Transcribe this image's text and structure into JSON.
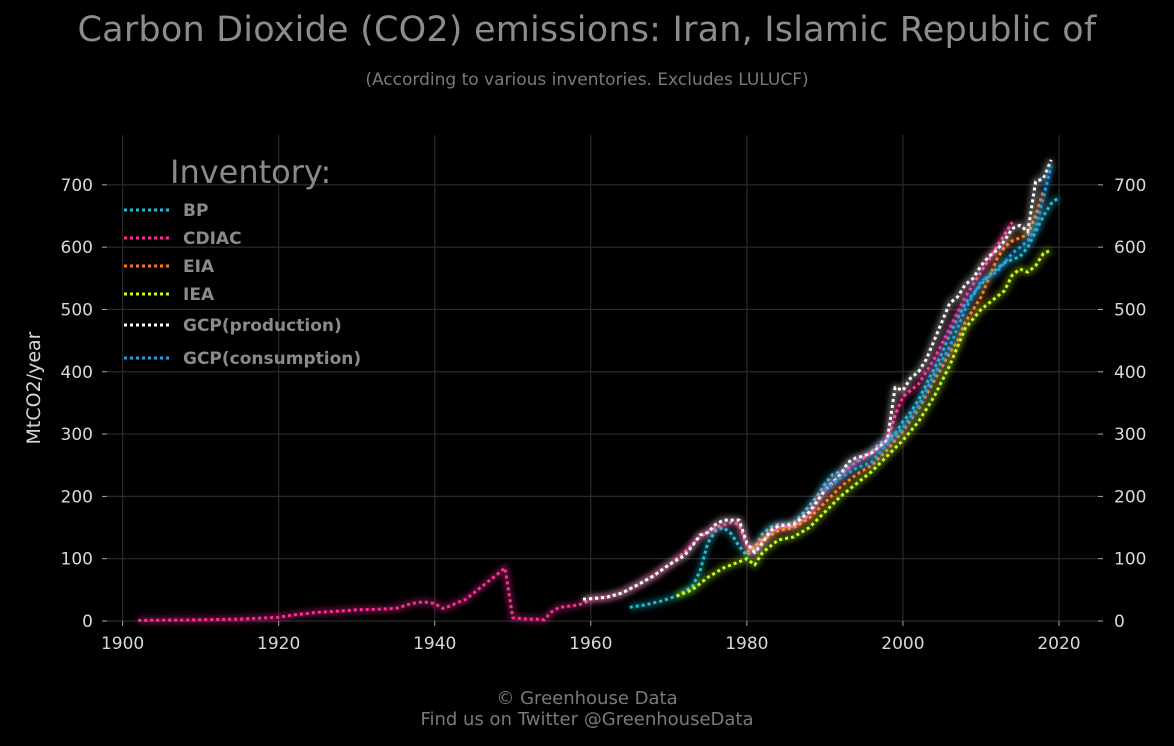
{
  "title": "Carbon Dioxide (CO2) emissions: Iran, Islamic Republic of",
  "subtitle": "(According to various inventories. Excludes LULUCF)",
  "footer": {
    "line1": "© Greenhouse Data",
    "line2": "Find us on Twitter @GreenhouseData"
  },
  "colors": {
    "background": "#000000",
    "grid": "#2b2b2b",
    "tick_text": "#d8d8d8",
    "legend_text": "#8a8a8a"
  },
  "chart_data": {
    "type": "line",
    "title": "Carbon Dioxide (CO2) emissions: Iran, Islamic Republic of",
    "subtitle": "(According to various inventories. Excludes LULUCF)",
    "xlabel": "",
    "ylabel": "MtCO2/year",
    "xlim": [
      1898,
      2025
    ],
    "ylim": [
      0,
      780
    ],
    "xticks": [
      1900,
      1920,
      1940,
      1960,
      1980,
      2000,
      2020
    ],
    "yticks": [
      0,
      100,
      200,
      300,
      400,
      500,
      600,
      700
    ],
    "grid": true,
    "legend_title": "Inventory:",
    "legend_position": "top-left",
    "line_style": "dotted",
    "series": [
      {
        "name": "BP",
        "color": "#19c3d6",
        "x": [
          1965,
          1967,
          1969,
          1971,
          1973,
          1974,
          1975,
          1976,
          1977,
          1978,
          1979,
          1980,
          1981,
          1982,
          1983,
          1984,
          1985,
          1986,
          1987,
          1988,
          1989,
          1990,
          1991,
          1992,
          1993,
          1994,
          1995,
          1996,
          1997,
          1998,
          1999,
          2000,
          2001,
          2002,
          2003,
          2004,
          2005,
          2006,
          2007,
          2008,
          2009,
          2010,
          2011,
          2012,
          2013,
          2014,
          2015,
          2016,
          2017,
          2018,
          2019,
          2020
        ],
        "y": [
          22,
          26,
          32,
          40,
          55,
          80,
          125,
          145,
          150,
          140,
          120,
          105,
          118,
          140,
          150,
          155,
          155,
          158,
          170,
          185,
          200,
          220,
          235,
          240,
          245,
          255,
          262,
          272,
          285,
          292,
          300,
          320,
          335,
          355,
          380,
          405,
          430,
          460,
          485,
          510,
          525,
          540,
          555,
          565,
          575,
          580,
          585,
          600,
          625,
          650,
          670,
          680
        ]
      },
      {
        "name": "CDIAC",
        "color": "#ff2e97",
        "x": [
          1902,
          1910,
          1915,
          1920,
          1922,
          1925,
          1928,
          1930,
          1933,
          1935,
          1937,
          1938,
          1939,
          1940,
          1941,
          1942,
          1943,
          1944,
          1945,
          1946,
          1947,
          1948,
          1949,
          1950,
          1951,
          1952,
          1953,
          1954,
          1955,
          1956,
          1958,
          1959,
          1960,
          1962,
          1964,
          1966,
          1968,
          1970,
          1972,
          1974,
          1976,
          1978,
          1979,
          1980,
          1981,
          1982,
          1984,
          1986,
          1988,
          1990,
          1992,
          1994,
          1996,
          1998,
          1999,
          2000,
          2002,
          2004,
          2006,
          2008,
          2010,
          2012,
          2013,
          2014
        ],
        "y": [
          1,
          2,
          3,
          6,
          10,
          14,
          16,
          18,
          19,
          20,
          28,
          30,
          30,
          28,
          20,
          24,
          30,
          35,
          45,
          55,
          65,
          75,
          85,
          5,
          4,
          3,
          3,
          2,
          15,
          22,
          25,
          28,
          35,
          38,
          45,
          58,
          72,
          90,
          110,
          135,
          150,
          158,
          155,
          120,
          110,
          130,
          150,
          152,
          170,
          210,
          235,
          255,
          270,
          290,
          330,
          360,
          380,
          420,
          470,
          520,
          560,
          600,
          620,
          640
        ]
      },
      {
        "name": "EIA",
        "color": "#ff7a1a",
        "x": [
          1980,
          1982,
          1984,
          1986,
          1988,
          1990,
          1992,
          1994,
          1996,
          1998,
          2000,
          2002,
          2004,
          2006,
          2007,
          2008,
          2009,
          2010,
          2011,
          2012,
          2013,
          2014,
          2015,
          2016,
          2017,
          2018
        ],
        "y": [
          110,
          130,
          145,
          150,
          165,
          190,
          215,
          235,
          250,
          275,
          305,
          340,
          385,
          430,
          450,
          480,
          500,
          520,
          550,
          580,
          600,
          610,
          615,
          620,
          650,
          690
        ]
      },
      {
        "name": "IEA",
        "color": "#c0ff1a",
        "x": [
          1971,
          1973,
          1975,
          1977,
          1979,
          1980,
          1981,
          1982,
          1984,
          1986,
          1988,
          1990,
          1992,
          1994,
          1996,
          1998,
          2000,
          2002,
          2004,
          2006,
          2008,
          2010,
          2012,
          2013,
          2014,
          2015,
          2016,
          2017,
          2018,
          2019
        ],
        "y": [
          40,
          50,
          70,
          85,
          95,
          100,
          90,
          110,
          130,
          135,
          150,
          175,
          200,
          220,
          240,
          265,
          290,
          320,
          360,
          410,
          470,
          500,
          520,
          530,
          555,
          565,
          560,
          570,
          590,
          595
        ]
      },
      {
        "name": "GCP(production)",
        "color": "#ffffff",
        "x": [
          1959,
          1962,
          1964,
          1966,
          1968,
          1970,
          1972,
          1973,
          1974,
          1975,
          1976,
          1977,
          1978,
          1979,
          1980,
          1981,
          1982,
          1983,
          1984,
          1986,
          1988,
          1990,
          1992,
          1993,
          1994,
          1995,
          1996,
          1997,
          1998,
          1999,
          2000,
          2001,
          2002,
          2003,
          2004,
          2005,
          2006,
          2007,
          2008,
          2009,
          2010,
          2011,
          2012,
          2013,
          2014,
          2015,
          2016,
          2017,
          2018,
          2019
        ],
        "y": [
          35,
          38,
          45,
          58,
          72,
          90,
          105,
          120,
          138,
          142,
          155,
          162,
          162,
          162,
          125,
          110,
          125,
          145,
          152,
          155,
          175,
          210,
          235,
          255,
          262,
          265,
          270,
          280,
          290,
          375,
          370,
          390,
          400,
          420,
          450,
          480,
          510,
          520,
          540,
          550,
          570,
          585,
          595,
          610,
          630,
          635,
          625,
          705,
          710,
          740
        ]
      },
      {
        "name": "GCP(consumption)",
        "color": "#1ea1e8",
        "x": [
          1990,
          1992,
          1994,
          1996,
          1998,
          2000,
          2002,
          2004,
          2006,
          2008,
          2010,
          2012,
          2013,
          2014,
          2015,
          2016,
          2017,
          2018,
          2019
        ],
        "y": [
          210,
          230,
          245,
          255,
          285,
          310,
          345,
          395,
          440,
          500,
          545,
          560,
          575,
          590,
          600,
          610,
          630,
          680,
          730
        ]
      }
    ]
  }
}
